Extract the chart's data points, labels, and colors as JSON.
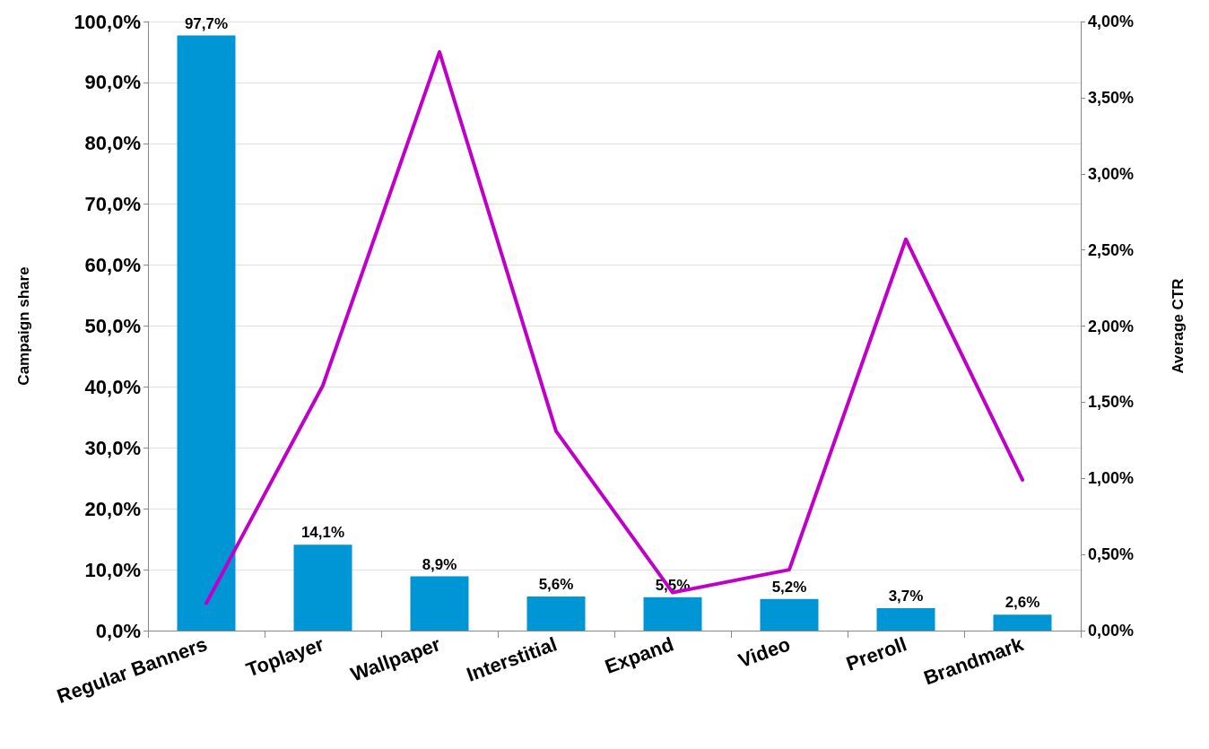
{
  "chart_data": {
    "type": "bar",
    "ylabel": "Campaign share",
    "y2label": "Average CTR",
    "categories": [
      "Regular Banners",
      "Toplayer",
      "Wallpaper",
      "Interstitial",
      "Expand",
      "Video",
      "Preroll",
      "Brandmark"
    ],
    "series": [
      {
        "color": "#0096d6",
        "values": [
          97.7,
          14.1,
          8.9,
          5.6,
          5.5,
          5.2,
          3.7,
          2.6
        ],
        "value_labels": [
          "97,7%",
          "14,1%",
          "8,9%",
          "5,6%",
          "5,5%",
          "5,2%",
          "3,7%",
          "2,6%"
        ]
      },
      {
        "type": "line",
        "axis": "y2",
        "color": "#c000c8",
        "marker": "none",
        "line_style": "solid",
        "values": [
          0.18,
          1.61,
          3.8,
          1.31,
          0.25,
          0.4,
          2.57,
          0.99
        ]
      }
    ],
    "ylim": [
      0,
      100
    ],
    "yticks": [
      {
        "value": 0,
        "label": "0,0%"
      },
      {
        "value": 10,
        "label": "10,0%"
      },
      {
        "value": 20,
        "label": "20,0%"
      },
      {
        "value": 30,
        "label": "30,0%"
      },
      {
        "value": 40,
        "label": "40,0%"
      },
      {
        "value": 50,
        "label": "50,0%"
      },
      {
        "value": 60,
        "label": "60,0%"
      },
      {
        "value": 70,
        "label": "70,0%"
      },
      {
        "value": 80,
        "label": "80,0%"
      },
      {
        "value": 90,
        "label": "90,0%"
      },
      {
        "value": 100,
        "label": "100,0%"
      }
    ],
    "y2lim": [
      0,
      4
    ],
    "y2ticks": [
      {
        "value": 0,
        "label": "0,00%"
      },
      {
        "value": 0.5,
        "label": "0,50%"
      },
      {
        "value": 1,
        "label": "1,00%"
      },
      {
        "value": 1.5,
        "label": "1,50%"
      },
      {
        "value": 2,
        "label": "2,00%"
      },
      {
        "value": 2.5,
        "label": "2,50%"
      },
      {
        "value": 3,
        "label": "3,00%"
      },
      {
        "value": 3.5,
        "label": "3,50%"
      },
      {
        "value": 4,
        "label": "4,00%"
      }
    ],
    "grid": "y"
  }
}
